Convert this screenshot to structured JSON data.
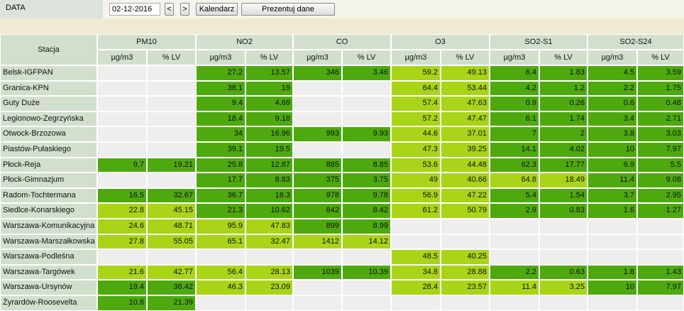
{
  "header": {
    "date_label": "DATA",
    "date": "02-12-2016",
    "prev": "<",
    "next": ">",
    "calendar": "Kalendarz",
    "present": "Prezentuj dane"
  },
  "table": {
    "station_header": "Stacja",
    "groups": [
      "PM10",
      "NO2",
      "CO",
      "O3",
      "SO2-S1",
      "SO2-S24"
    ],
    "units": [
      "µg/m3",
      "% LV",
      "µg/m3",
      "% LV",
      "µg/m3",
      "% LV",
      "µg/m3",
      "% LV",
      "µg/m3",
      "% LV",
      "µg/m3",
      "% LV"
    ],
    "rows": [
      {
        "station": "Belsk-IGFPAN",
        "cells": [
          null,
          null,
          "27.2",
          "13.57",
          "346",
          "3.46",
          "59.2",
          "49.13",
          "6.4",
          "1.83",
          "4.5",
          "3.59"
        ]
      },
      {
        "station": "Granica-KPN",
        "cells": [
          null,
          null,
          "38.1",
          "19",
          null,
          null,
          "64.4",
          "53.44",
          "4.2",
          "1.2",
          "2.2",
          "1.75"
        ]
      },
      {
        "station": "Guty Duże",
        "cells": [
          null,
          null,
          "9.4",
          "4.69",
          null,
          null,
          "57.4",
          "47.63",
          "0.9",
          "0.26",
          "0.6",
          "0.48"
        ]
      },
      {
        "station": "Legionowo-Zegrzyńska",
        "cells": [
          null,
          null,
          "18.4",
          "9.18",
          null,
          null,
          "57.2",
          "47.47",
          "6.1",
          "1.74",
          "3.4",
          "2.71"
        ]
      },
      {
        "station": "Otwock-Brzozowa",
        "cells": [
          null,
          null,
          "34",
          "16.96",
          "993",
          "9.93",
          "44.6",
          "37.01",
          "7",
          "2",
          "3.8",
          "3.03"
        ]
      },
      {
        "station": "Piastów-Pułaskiego",
        "cells": [
          null,
          null,
          "39.1",
          "19.5",
          null,
          null,
          "47.3",
          "39.25",
          "14.1",
          "4.02",
          "10",
          "7.97"
        ]
      },
      {
        "station": "Płock-Reja",
        "cells": [
          "9.7",
          "19.21",
          "25.8",
          "12.87",
          "885",
          "8.85",
          "53.6",
          "44.48",
          "62.3",
          "17.77",
          "6.9",
          "5.5"
        ]
      },
      {
        "station": "Płock-Gimnazjum",
        "cells": [
          null,
          null,
          "17.7",
          "8.83",
          "375",
          "3.75",
          "49",
          "40.66",
          "64.8",
          "18.49",
          "11.4",
          "9.08"
        ]
      },
      {
        "station": "Radom-Tochtermana",
        "cells": [
          "16.5",
          "32.67",
          "36.7",
          "18.3",
          "978",
          "9.78",
          "56.9",
          "47.22",
          "5.4",
          "1.54",
          "3.7",
          "2.95"
        ]
      },
      {
        "station": "Siedlce-Konarskiego",
        "cells": [
          "22.8",
          "45.15",
          "21.3",
          "10.62",
          "842",
          "8.42",
          "61.2",
          "50.79",
          "2.9",
          "0.83",
          "1.6",
          "1.27"
        ]
      },
      {
        "station": "Warszawa-Komunikacyjna",
        "cells": [
          "24.6",
          "48.71",
          "95.9",
          "47.83",
          "899",
          "8.99",
          null,
          null,
          null,
          null,
          null,
          null
        ]
      },
      {
        "station": "Warszawa-Marszałkowska",
        "cells": [
          "27.8",
          "55.05",
          "65.1",
          "32.47",
          "1412",
          "14.12",
          null,
          null,
          null,
          null,
          null,
          null
        ]
      },
      {
        "station": "Warszawa-Podleśna",
        "cells": [
          null,
          null,
          null,
          null,
          null,
          null,
          "48.5",
          "40.25",
          null,
          null,
          null,
          null
        ]
      },
      {
        "station": "Warszawa-Targówek",
        "cells": [
          "21.6",
          "42.77",
          "56.4",
          "28.13",
          "1039",
          "10.39",
          "34.8",
          "28.88",
          "2.2",
          "0.63",
          "1.8",
          "1.43"
        ]
      },
      {
        "station": "Warszawa-Ursynów",
        "cells": [
          "19.4",
          "38.42",
          "46.3",
          "23.09",
          null,
          null,
          "28.4",
          "23.57",
          "11.4",
          "3.25",
          "10",
          "7.97"
        ]
      },
      {
        "station": "Żyrardów-Roosevelta",
        "cells": [
          "10.8",
          "21.39",
          null,
          null,
          null,
          null,
          null,
          null,
          null,
          null,
          null,
          null
        ]
      }
    ]
  }
}
